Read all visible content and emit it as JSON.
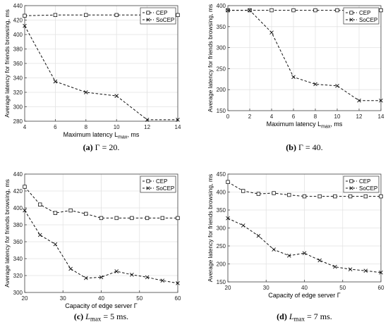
{
  "figure": {
    "captions": [
      {
        "label": "(a)",
        "text": "Γ = 20."
      },
      {
        "label": "(b)",
        "text": "Γ = 40."
      },
      {
        "label": "(c)",
        "text": "L",
        "sub": "max",
        "tail": " = 5 ms."
      },
      {
        "label": "(d)",
        "text": "L",
        "sub": "max",
        "tail": " = 7 ms."
      }
    ]
  },
  "chart_data": [
    {
      "type": "line",
      "ylabel": "Average latency for friends browsing, ms",
      "xlabel": {
        "text": "Maximum latency L",
        "sub": "max",
        "tail": ", ms"
      },
      "xlim": [
        4,
        14
      ],
      "ylim": [
        280,
        440
      ],
      "xticks": [
        4,
        6,
        8,
        10,
        12,
        14
      ],
      "yticks": [
        280,
        300,
        320,
        340,
        360,
        380,
        400,
        420,
        440
      ],
      "grid": true,
      "legend": "top-right",
      "series": [
        {
          "name": "CEP",
          "marker": "square",
          "x": [
            4,
            6,
            8,
            10,
            12,
            14
          ],
          "y": [
            426,
            427,
            427,
            427,
            427,
            427
          ]
        },
        {
          "name": "SoCEP",
          "marker": "x",
          "x": [
            4,
            6,
            8,
            10,
            12,
            14
          ],
          "y": [
            412,
            335,
            320,
            315,
            282,
            282
          ]
        }
      ]
    },
    {
      "type": "line",
      "ylabel": "Average latency for friends browsing, ms",
      "xlabel": {
        "text": "Maximum latency L",
        "sub": "max",
        "tail": ", ms"
      },
      "xlim": [
        0,
        14
      ],
      "ylim": [
        150,
        400
      ],
      "xticks": [
        0,
        2,
        4,
        6,
        8,
        10,
        12,
        14
      ],
      "yticks": [
        150,
        200,
        250,
        300,
        350,
        400
      ],
      "grid": true,
      "legend": "top-right",
      "series": [
        {
          "name": "CEP",
          "marker": "square",
          "x": [
            0,
            2,
            4,
            6,
            8,
            10,
            12,
            14
          ],
          "y": [
            389,
            389,
            389,
            389,
            389,
            389,
            389,
            389
          ]
        },
        {
          "name": "SoCEP",
          "marker": "x",
          "x": [
            0,
            2,
            4,
            6,
            8,
            10,
            12,
            14
          ],
          "y": [
            389,
            389,
            336,
            230,
            213,
            209,
            174,
            174
          ]
        }
      ]
    },
    {
      "type": "line",
      "ylabel": "Average latency for friends browsing, ms",
      "xlabel": {
        "text": "Capacity of edge server Γ",
        "sub": "",
        "tail": ""
      },
      "xlim": [
        20,
        60
      ],
      "ylim": [
        300,
        440
      ],
      "xticks": [
        20,
        30,
        40,
        50,
        60
      ],
      "yticks": [
        300,
        320,
        340,
        360,
        380,
        400,
        420,
        440
      ],
      "grid": true,
      "legend": "top-right",
      "series": [
        {
          "name": "CEP",
          "marker": "square",
          "x": [
            20,
            24,
            28,
            32,
            36,
            40,
            44,
            48,
            52,
            56,
            60
          ],
          "y": [
            425,
            404,
            394,
            397,
            393,
            388,
            388,
            388,
            388,
            388,
            388
          ]
        },
        {
          "name": "SoCEP",
          "marker": "x",
          "x": [
            20,
            24,
            28,
            32,
            36,
            40,
            44,
            48,
            52,
            56,
            60
          ],
          "y": [
            397,
            368,
            357,
            328,
            317,
            318,
            325,
            321,
            318,
            314,
            311
          ]
        }
      ]
    },
    {
      "type": "line",
      "ylabel": "Average latency for friends browsing, ms",
      "xlabel": {
        "text": "Capacity of edge server Γ",
        "sub": "",
        "tail": ""
      },
      "xlim": [
        20,
        60
      ],
      "ylim": [
        150,
        450
      ],
      "xticks": [
        20,
        30,
        40,
        50,
        60
      ],
      "yticks": [
        150,
        200,
        250,
        300,
        350,
        400,
        450
      ],
      "grid": true,
      "legend": "top-right",
      "series": [
        {
          "name": "CEP",
          "marker": "square",
          "x": [
            20,
            24,
            28,
            32,
            36,
            40,
            44,
            48,
            52,
            56,
            60
          ],
          "y": [
            428,
            403,
            395,
            397,
            392,
            388,
            388,
            388,
            388,
            388,
            388
          ]
        },
        {
          "name": "SoCEP",
          "marker": "x",
          "x": [
            20,
            24,
            28,
            32,
            36,
            40,
            44,
            48,
            52,
            56,
            60
          ],
          "y": [
            327,
            307,
            278,
            240,
            223,
            230,
            210,
            192,
            185,
            181,
            176
          ]
        }
      ]
    }
  ]
}
